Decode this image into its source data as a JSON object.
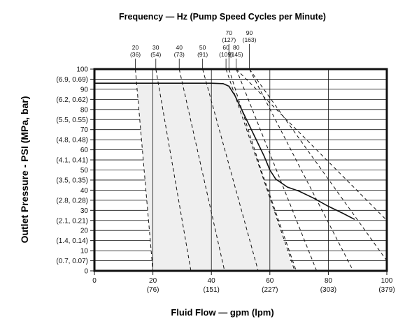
{
  "chart_data": {
    "type": "line",
    "title": "Frequency — Hz (Pump Speed Cycles per Minute)",
    "xlabel": "Fluid Flow — gpm (lpm)",
    "ylabel": "Outlet Pressure - PSI (MPa, bar)",
    "xlim": [
      0,
      100
    ],
    "ylim": [
      0,
      100
    ],
    "grid": true,
    "x_ticks": [
      {
        "value": 0,
        "label": "0",
        "sublabel": ""
      },
      {
        "value": 20,
        "label": "20",
        "sublabel": "(76)"
      },
      {
        "value": 40,
        "label": "40",
        "sublabel": "(151)"
      },
      {
        "value": 60,
        "label": "60",
        "sublabel": "(227)"
      },
      {
        "value": 80,
        "label": "80",
        "sublabel": "(303)"
      },
      {
        "value": 100,
        "label": "100",
        "sublabel": "(379)"
      }
    ],
    "y_ticks": [
      {
        "value": 100,
        "label": "100"
      },
      {
        "value": 95,
        "label": "(6.9, 0.69)"
      },
      {
        "value": 90,
        "label": "90"
      },
      {
        "value": 85,
        "label": "(6.2, 0.62)"
      },
      {
        "value": 80,
        "label": "80"
      },
      {
        "value": 75,
        "label": "(5.5, 0.55)"
      },
      {
        "value": 70,
        "label": "70"
      },
      {
        "value": 65,
        "label": "(4.8, 0.48)"
      },
      {
        "value": 60,
        "label": "60"
      },
      {
        "value": 55,
        "label": "(4.1, 0.41)"
      },
      {
        "value": 50,
        "label": "50"
      },
      {
        "value": 45,
        "label": "(3.5, 0.35)"
      },
      {
        "value": 40,
        "label": "40"
      },
      {
        "value": 35,
        "label": "(2.8, 0.28)"
      },
      {
        "value": 30,
        "label": "30"
      },
      {
        "value": 25,
        "label": "(2.1, 0.21)"
      },
      {
        "value": 20,
        "label": "20"
      },
      {
        "value": 15,
        "label": "(1.4, 0.14)"
      },
      {
        "value": 10,
        "label": "10"
      },
      {
        "value": 5,
        "label": "(0.7, 0.07)"
      },
      {
        "value": 0,
        "label": "0"
      }
    ],
    "frequency_lines": [
      {
        "hz": "20",
        "cpm": "(36)",
        "points": [
          [
            14,
            100
          ],
          [
            20,
            0
          ]
        ]
      },
      {
        "hz": "30",
        "cpm": "(54)",
        "points": [
          [
            21,
            100
          ],
          [
            33,
            0
          ]
        ]
      },
      {
        "hz": "40",
        "cpm": "(73)",
        "points": [
          [
            29,
            100
          ],
          [
            44.5,
            0
          ]
        ]
      },
      {
        "hz": "50",
        "cpm": "(91)",
        "points": [
          [
            37,
            100
          ],
          [
            56,
            0
          ]
        ]
      },
      {
        "hz": "60",
        "cpm": "(109)",
        "points": [
          [
            45,
            100
          ],
          [
            68.5,
            0
          ]
        ]
      },
      {
        "hz": "70",
        "cpm": "(127)",
        "points": [
          [
            46,
            100
          ],
          [
            57,
            50
          ],
          [
            69,
            0
          ]
        ]
      },
      {
        "hz": "80",
        "cpm": "(145)",
        "points": [
          [
            48.5,
            100
          ],
          [
            76,
            0
          ]
        ]
      },
      {
        "hz": "90",
        "cpm": "(163)",
        "points": [
          [
            53,
            100
          ],
          [
            88.5,
            0
          ]
        ]
      },
      {
        "hz": "",
        "cpm": "",
        "points": [
          [
            53,
            100
          ],
          [
            100,
            5
          ]
        ]
      },
      {
        "hz": "",
        "cpm": "",
        "points": [
          [
            48.5,
            100
          ],
          [
            100,
            25
          ]
        ]
      }
    ],
    "operating_region": [
      [
        14.5,
        93
      ],
      [
        45,
        93
      ],
      [
        48,
        91
      ],
      [
        68,
        0
      ],
      [
        20,
        0
      ]
    ],
    "performance_curve": [
      [
        0,
        93
      ],
      [
        20,
        93
      ],
      [
        40,
        93
      ],
      [
        44,
        92.8
      ],
      [
        46,
        91.5
      ],
      [
        48,
        87
      ],
      [
        51,
        78
      ],
      [
        55,
        66
      ],
      [
        58,
        57
      ],
      [
        60,
        50
      ],
      [
        62,
        45.5
      ],
      [
        66,
        41.5
      ],
      [
        70,
        39.5
      ],
      [
        75,
        36
      ],
      [
        80,
        32
      ],
      [
        85,
        28.5
      ],
      [
        89,
        25.5
      ]
    ]
  }
}
